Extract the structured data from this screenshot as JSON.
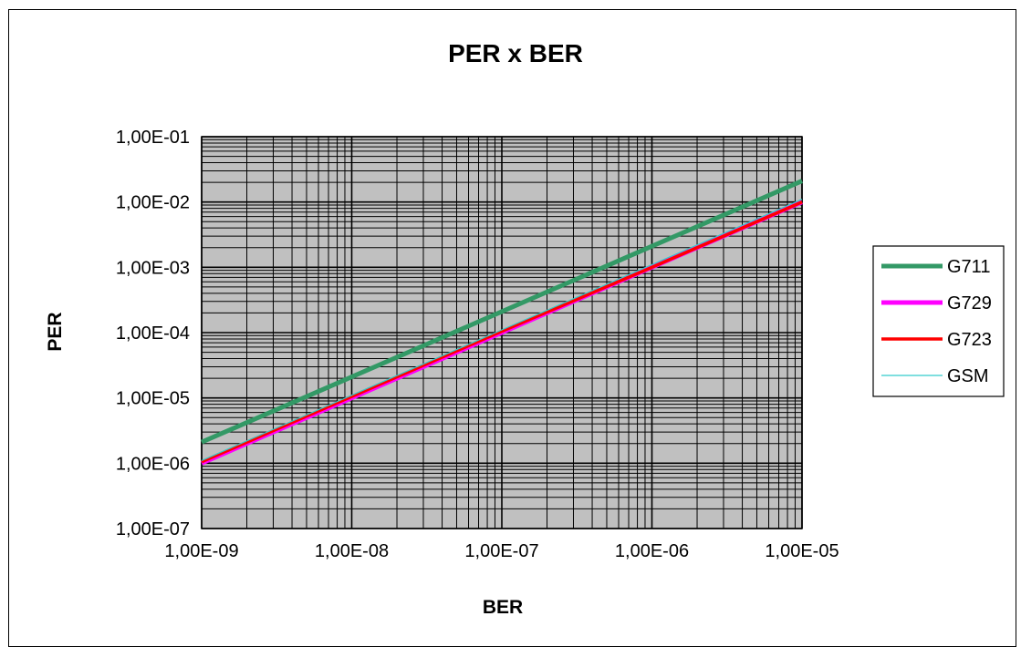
{
  "chart_data": {
    "type": "line",
    "title": "PER x BER",
    "xlabel": "BER",
    "ylabel": "PER",
    "x_scale": "log",
    "y_scale": "log",
    "xlim": [
      1e-09,
      1e-05
    ],
    "ylim": [
      1e-07,
      0.1
    ],
    "x_tick_labels": [
      "1,00E-09",
      "1,00E-08",
      "1,00E-07",
      "1,00E-06",
      "1,00E-05"
    ],
    "y_tick_labels": [
      "1,00E-07",
      "1,00E-06",
      "1,00E-05",
      "1,00E-04",
      "1,00E-03",
      "1,00E-02",
      "1,00E-01"
    ],
    "grid": true,
    "plot_background": "#c0c0c0",
    "legend_position": "right",
    "series": [
      {
        "name": "G711",
        "color": "#339966",
        "x": [
          1e-09,
          1e-08,
          1e-07,
          1e-06,
          1e-05
        ],
        "values": [
          2.1e-06,
          2.1e-05,
          0.00021,
          0.0021,
          0.021
        ]
      },
      {
        "name": "G729",
        "color": "#ff00ff",
        "x": [
          1e-09,
          1e-08,
          1e-07,
          1e-06,
          1e-05
        ],
        "values": [
          1e-06,
          1e-05,
          0.0001,
          0.001,
          0.01
        ]
      },
      {
        "name": "G723",
        "color": "#ff0000",
        "x": [
          1e-09,
          1e-08,
          1e-07,
          1e-06,
          1e-05
        ],
        "values": [
          1.05e-06,
          1.05e-05,
          0.000105,
          0.001,
          0.01
        ]
      },
      {
        "name": "GSM",
        "color": "#33cccc",
        "x": [
          1e-09,
          1e-08,
          1e-07,
          1e-06,
          1e-05
        ],
        "values": [
          1.1e-06,
          1.1e-05,
          0.00011,
          0.0011,
          0.011
        ]
      }
    ]
  }
}
